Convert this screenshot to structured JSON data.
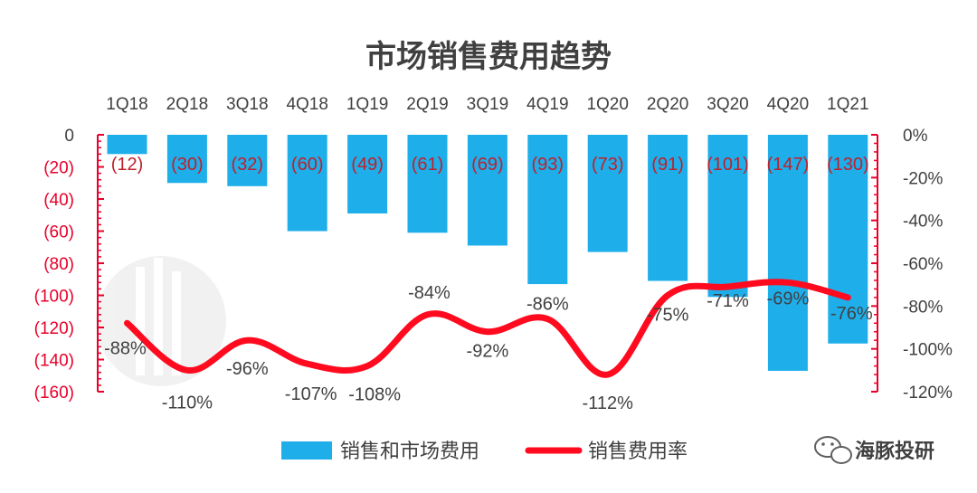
{
  "chart_data": {
    "type": "bar+line",
    "title": "市场销售费用趋势",
    "categories": [
      "1Q18",
      "2Q18",
      "3Q18",
      "4Q18",
      "1Q19",
      "2Q19",
      "3Q19",
      "4Q19",
      "1Q20",
      "2Q20",
      "3Q20",
      "4Q20",
      "1Q21"
    ],
    "series": [
      {
        "name": "销售和市场费用",
        "type": "bar",
        "axis": "left",
        "values": [
          -12,
          -30,
          -32,
          -60,
          -49,
          -61,
          -69,
          -93,
          -73,
          -91,
          -101,
          -147,
          -130
        ],
        "labels": [
          "(12)",
          "(30)",
          "(32)",
          "(60)",
          "(49)",
          "(61)",
          "(69)",
          "(93)",
          "(73)",
          "(91)",
          "(101)",
          "(147)",
          "(130)"
        ],
        "color": "#1eaeea"
      },
      {
        "name": "销售费用率",
        "type": "line",
        "axis": "right",
        "values": [
          -88,
          -110,
          -96,
          -107,
          -108,
          -84,
          -92,
          -86,
          -112,
          -75,
          -71,
          -69,
          -76
        ],
        "labels": [
          "-88%",
          "-110%",
          "-96%",
          "-107%",
          "-108%",
          "-84%",
          "-92%",
          "-86%",
          "-112%",
          "-75%",
          "-71%",
          "-69%",
          "-76%"
        ],
        "color": "#ff0a1e"
      }
    ],
    "left_axis": {
      "ylim": [
        -160,
        0
      ],
      "ticks": [
        0,
        -20,
        -40,
        -60,
        -80,
        -100,
        -120,
        -140,
        -160
      ],
      "tick_labels": [
        "0",
        "(20)",
        "(40)",
        "(60)",
        "(80)",
        "(100)",
        "(120)",
        "(140)",
        "(160)"
      ]
    },
    "right_axis": {
      "ylim": [
        -120,
        0
      ],
      "ticks": [
        0,
        -20,
        -40,
        -60,
        -80,
        -100,
        -120
      ],
      "tick_labels": [
        "0%",
        "-20%",
        "-40%",
        "-60%",
        "-80%",
        "-100%",
        "-120%"
      ]
    },
    "legend_position": "bottom-center"
  },
  "watermark": {
    "brand": "海豚投研",
    "icon": "wechat-icon"
  }
}
